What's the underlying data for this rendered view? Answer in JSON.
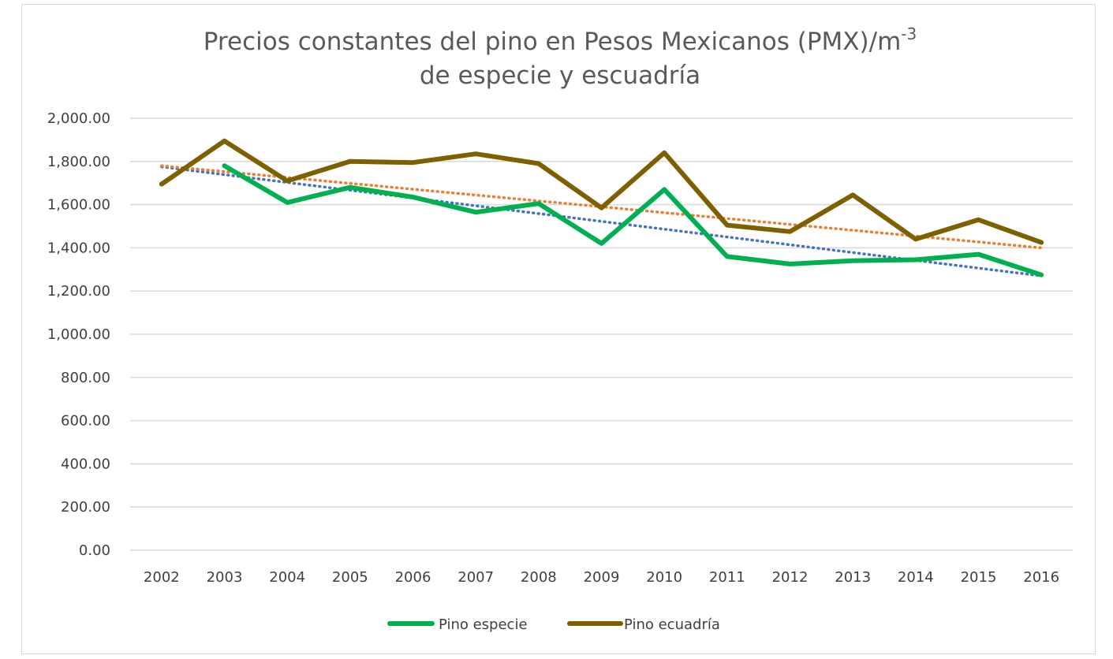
{
  "chart_data": {
    "type": "line",
    "title_line1": "Precios constantes del pino en Pesos Mexicanos (PMX)/m",
    "title_superscript": "-3",
    "title_line2": "de especie y escuadría",
    "xlabel": "",
    "ylabel": "",
    "categories": [
      "2002",
      "2003",
      "2004",
      "2005",
      "2006",
      "2007",
      "2008",
      "2009",
      "2010",
      "2011",
      "2012",
      "2013",
      "2014",
      "2015",
      "2016"
    ],
    "ylim": [
      0,
      2000
    ],
    "ytick_values": [
      0,
      200,
      400,
      600,
      800,
      1000,
      1200,
      1400,
      1600,
      1800,
      2000
    ],
    "ytick_labels": [
      "0.00",
      "200.00",
      "400.00",
      "600.00",
      "800.00",
      "1,000.00",
      "1,200.00",
      "1,400.00",
      "1,600.00",
      "1,800.00",
      "2,000.00"
    ],
    "grid": true,
    "legend_position": "bottom-center",
    "series": [
      {
        "name": "Pino especie",
        "color": "#00b050",
        "values": [
          null,
          1780,
          1610,
          1680,
          1635,
          1565,
          1605,
          1420,
          1670,
          1360,
          1325,
          1340,
          1345,
          1370,
          1275
        ]
      },
      {
        "name": "Pino ecuadría",
        "color": "#7f6000",
        "values": [
          1695,
          1895,
          1710,
          1800,
          1795,
          1835,
          1790,
          1585,
          1840,
          1505,
          1475,
          1645,
          1440,
          1530,
          1425
        ]
      }
    ],
    "trendlines": [
      {
        "name": "trend-pino-especie",
        "color": "#4472c4",
        "start": [
          2002,
          1775
        ],
        "end": [
          2016,
          1270
        ]
      },
      {
        "name": "trend-pino-ecuadria",
        "color": "#ed7d31",
        "start": [
          2002,
          1780
        ],
        "end": [
          2016,
          1400
        ]
      }
    ]
  }
}
